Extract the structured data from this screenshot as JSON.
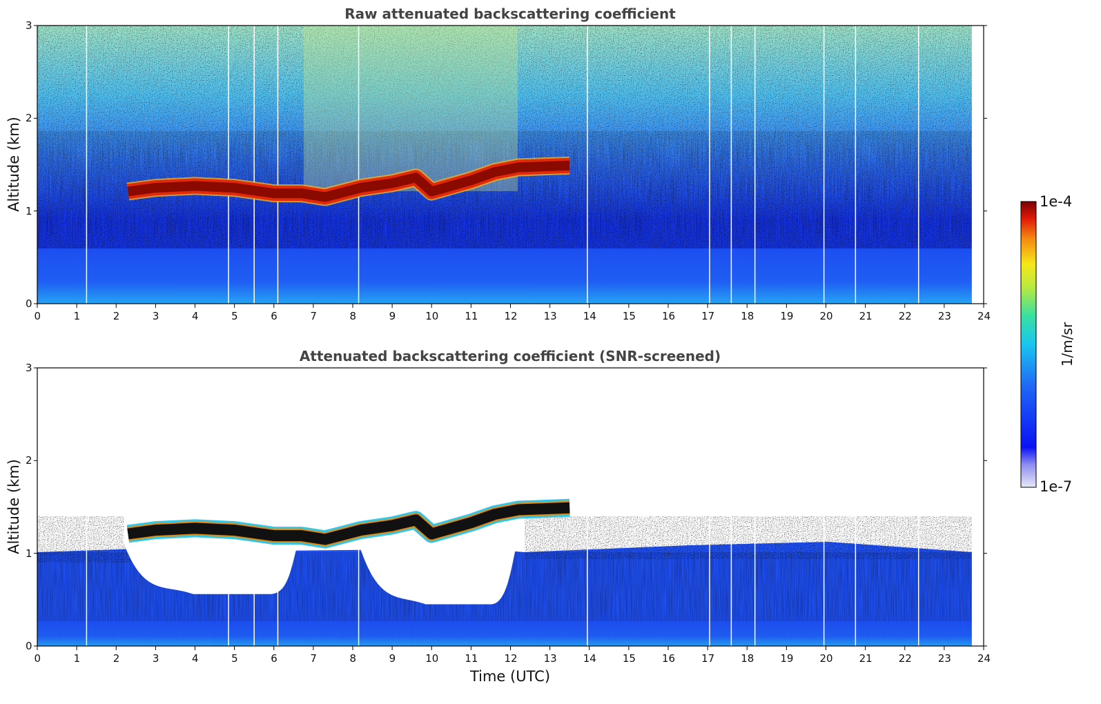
{
  "chart_data": [
    {
      "type": "heatmap",
      "title": "Raw attenuated backscattering coefficient",
      "xlabel": "",
      "ylabel": "Altitude (km)",
      "xlim": [
        0,
        24
      ],
      "ylim": [
        0,
        3
      ],
      "xticks": [
        "0",
        "1",
        "2",
        "3",
        "4",
        "5",
        "6",
        "7",
        "8",
        "9",
        "10",
        "11",
        "12",
        "13",
        "14",
        "15",
        "16",
        "17",
        "18",
        "19",
        "20",
        "21",
        "22",
        "23",
        "24"
      ],
      "yticks": [
        "0",
        "1",
        "2",
        "3"
      ],
      "data_end_time": 23.7,
      "missing_profile_times": [
        1.25,
        4.85,
        5.5,
        6.1,
        8.15,
        13.95,
        17.05,
        17.6,
        18.2,
        19.95,
        20.75,
        22.35
      ],
      "cloud_layer": [
        {
          "t": 2.3,
          "alt": 1.21
        },
        {
          "t": 3.0,
          "alt": 1.25
        },
        {
          "t": 4.0,
          "alt": 1.27
        },
        {
          "t": 5.0,
          "alt": 1.25
        },
        {
          "t": 6.0,
          "alt": 1.19
        },
        {
          "t": 6.7,
          "alt": 1.19
        },
        {
          "t": 7.3,
          "alt": 1.15
        },
        {
          "t": 8.2,
          "alt": 1.25
        },
        {
          "t": 9.0,
          "alt": 1.3
        },
        {
          "t": 9.6,
          "alt": 1.36
        },
        {
          "t": 10.0,
          "alt": 1.21
        },
        {
          "t": 10.5,
          "alt": 1.27
        },
        {
          "t": 11.0,
          "alt": 1.33
        },
        {
          "t": 11.6,
          "alt": 1.42
        },
        {
          "t": 12.2,
          "alt": 1.47
        },
        {
          "t": 13.5,
          "alt": 1.49
        }
      ]
    },
    {
      "type": "heatmap",
      "title": "Attenuated backscattering coefficient (SNR-screened)",
      "xlabel": "Time (UTC)",
      "ylabel": "Altitude (km)",
      "xlim": [
        0,
        24
      ],
      "ylim": [
        0,
        3
      ],
      "xticks": [
        "0",
        "1",
        "2",
        "3",
        "4",
        "5",
        "6",
        "7",
        "8",
        "9",
        "10",
        "11",
        "12",
        "13",
        "14",
        "15",
        "16",
        "17",
        "18",
        "19",
        "20",
        "21",
        "22",
        "23",
        "24"
      ],
      "yticks": [
        "0",
        "1",
        "2",
        "3"
      ],
      "data_end_time": 23.7,
      "missing_profile_times": [
        1.25,
        4.85,
        5.5,
        6.1,
        8.15,
        13.95,
        17.05,
        17.6,
        18.2,
        19.95,
        20.75,
        22.35
      ],
      "screened_gaps": [
        {
          "t_start": 2.2,
          "t_end": 6.6,
          "alt_low": 0.56,
          "alt_high": 1.1
        },
        {
          "t_start": 8.1,
          "t_end": 12.2,
          "alt_low": 0.45,
          "alt_high": 1.18
        }
      ]
    }
  ],
  "colorbar": {
    "label": "1/m/sr",
    "max_label": "1e-4",
    "min_label": "1e-7",
    "scale": "log",
    "colormap": "jet"
  }
}
